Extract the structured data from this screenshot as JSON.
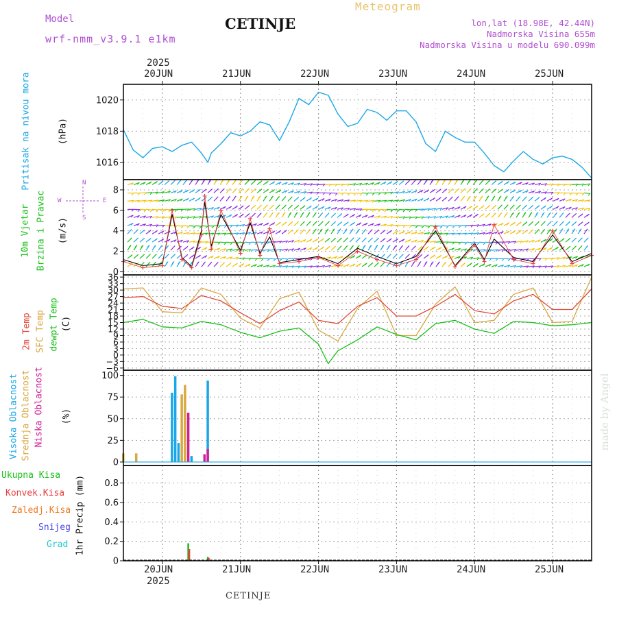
{
  "header": {
    "model_label": "Model",
    "model_name": "wrf-nmm_v3.9.1 e1km",
    "station": "CETINJE",
    "meteogram_label": "Meteogram",
    "lonlat": "lon,lat (18.98E, 42.44N)",
    "altitude": "Nadmorska Visina 655m",
    "model_altitude": "Nadmorska Visina u modelu 690.099m",
    "footer_station": "CETINJE",
    "watermark": "made by Angel"
  },
  "colors": {
    "pressure": "#1aa7e6",
    "wind_speed": "#000000",
    "wind_gust": "#e84040",
    "temp_2m": "#e24a3b",
    "temp_sfc": "#d9a840",
    "dewpoint": "#16c016",
    "cloud_high": "#1aa7e6",
    "cloud_mid": "#d9a840",
    "cloud_low": "#d0209a",
    "precip_total": "#18b818",
    "precip_conv": "#e84040",
    "precip_strat": "#f07820",
    "snow": "#4848e8",
    "hail": "#20c8c8"
  },
  "chart_data": [
    {
      "type": "line",
      "panel": "pressure",
      "ylabel_main": "Pritisak na nivou mora",
      "ylabel_unit": "(hPa)",
      "ylim": [
        1014.9,
        1021.0
      ],
      "yticks": [
        1016,
        1018,
        1020
      ],
      "x_start": "2025-06-19T12:00",
      "x_end": "2025-06-25T12:00",
      "grid": true,
      "series": [
        {
          "x": [
            "2025-06-19T12:00",
            "2025-06-19T15:00",
            "2025-06-19T18:00",
            "2025-06-19T21:00",
            "2025-06-20T00:00",
            "2025-06-20T03:00",
            "2025-06-20T06:00",
            "2025-06-20T09:00",
            "2025-06-20T12:00",
            "2025-06-20T14:00",
            "2025-06-20T15:00",
            "2025-06-20T18:00",
            "2025-06-20T21:00",
            "2025-06-21T00:00",
            "2025-06-21T03:00",
            "2025-06-21T06:00",
            "2025-06-21T09:00",
            "2025-06-21T12:00",
            "2025-06-21T15:00",
            "2025-06-21T18:00",
            "2025-06-21T21:00",
            "2025-06-22T00:00",
            "2025-06-22T03:00",
            "2025-06-22T06:00",
            "2025-06-22T09:00",
            "2025-06-22T12:00",
            "2025-06-22T15:00",
            "2025-06-22T18:00",
            "2025-06-22T21:00",
            "2025-06-23T00:00",
            "2025-06-23T03:00",
            "2025-06-23T06:00",
            "2025-06-23T09:00",
            "2025-06-23T12:00",
            "2025-06-23T15:00",
            "2025-06-23T18:00",
            "2025-06-23T21:00",
            "2025-06-24T00:00",
            "2025-06-24T03:00",
            "2025-06-24T06:00",
            "2025-06-24T09:00",
            "2025-06-24T12:00",
            "2025-06-24T15:00",
            "2025-06-24T18:00",
            "2025-06-24T21:00",
            "2025-06-25T00:00",
            "2025-06-25T03:00",
            "2025-06-25T06:00",
            "2025-06-25T09:00",
            "2025-06-25T12:00"
          ],
          "values": [
            1018.1,
            1016.8,
            1016.3,
            1016.9,
            1017.0,
            1016.7,
            1017.1,
            1017.3,
            1016.6,
            1016.0,
            1016.6,
            1017.2,
            1017.9,
            1017.7,
            1018.0,
            1018.6,
            1018.4,
            1017.4,
            1018.6,
            1020.1,
            1019.7,
            1020.5,
            1020.3,
            1019.1,
            1018.3,
            1018.5,
            1019.4,
            1019.2,
            1018.7,
            1019.3,
            1019.3,
            1018.6,
            1017.2,
            1016.7,
            1018.0,
            1017.6,
            1017.3,
            1017.3,
            1016.6,
            1015.8,
            1015.4,
            1016.1,
            1016.7,
            1016.2,
            1015.9,
            1016.3,
            1016.4,
            1016.2,
            1015.7,
            1015.0
          ]
        }
      ]
    },
    {
      "type": "line",
      "panel": "wind",
      "ylabel_main": "10m Vjetar",
      "ylabel_sub": "Brzina i Pravac",
      "ylabel_unit": "(m/s)",
      "compass": {
        "w": "W",
        "e": "E",
        "n": "N",
        "s": "S"
      },
      "ylim": [
        -0.3,
        9.0
      ],
      "yticks": [
        0,
        2,
        4,
        6,
        8
      ],
      "x_start": "2025-06-19T12:00",
      "x_end": "2025-06-25T12:00",
      "grid": true,
      "barb_rows": [
        0.5,
        1.3,
        2.1,
        2.9,
        3.7,
        4.5,
        5.3,
        6.1,
        6.9,
        7.7,
        8.5
      ],
      "series": [
        {
          "name": "speed",
          "x": [
            "2025-06-19T12:00",
            "2025-06-19T18:00",
            "2025-06-20T00:00",
            "2025-06-20T03:00",
            "2025-06-20T06:00",
            "2025-06-20T09:00",
            "2025-06-20T12:00",
            "2025-06-20T13:00",
            "2025-06-20T15:00",
            "2025-06-20T18:00",
            "2025-06-21T00:00",
            "2025-06-21T03:00",
            "2025-06-21T06:00",
            "2025-06-21T09:00",
            "2025-06-21T12:00",
            "2025-06-21T18:00",
            "2025-06-22T00:00",
            "2025-06-22T06:00",
            "2025-06-22T12:00",
            "2025-06-22T18:00",
            "2025-06-23T00:00",
            "2025-06-23T06:00",
            "2025-06-23T12:00",
            "2025-06-23T18:00",
            "2025-06-24T00:00",
            "2025-06-24T03:00",
            "2025-06-24T06:00",
            "2025-06-24T12:00",
            "2025-06-24T18:00",
            "2025-06-25T00:00",
            "2025-06-25T06:00",
            "2025-06-25T12:00"
          ],
          "values": [
            1.2,
            0.6,
            0.8,
            5.6,
            1.4,
            0.5,
            4.0,
            6.8,
            2.5,
            5.6,
            2.1,
            4.8,
            1.8,
            3.4,
            0.9,
            1.2,
            1.5,
            0.8,
            2.3,
            1.5,
            0.8,
            1.5,
            4.0,
            0.6,
            2.8,
            1.2,
            3.2,
            1.4,
            1.0,
            3.6,
            1.0,
            1.8
          ]
        },
        {
          "name": "gust",
          "x": [
            "2025-06-19T12:00",
            "2025-06-19T18:00",
            "2025-06-20T00:00",
            "2025-06-20T03:00",
            "2025-06-20T06:00",
            "2025-06-20T09:00",
            "2025-06-20T12:00",
            "2025-06-20T13:00",
            "2025-06-20T15:00",
            "2025-06-20T18:00",
            "2025-06-21T00:00",
            "2025-06-21T03:00",
            "2025-06-21T06:00",
            "2025-06-21T09:00",
            "2025-06-21T12:00",
            "2025-06-21T18:00",
            "2025-06-22T00:00",
            "2025-06-22T06:00",
            "2025-06-22T12:00",
            "2025-06-22T18:00",
            "2025-06-23T00:00",
            "2025-06-23T06:00",
            "2025-06-23T12:00",
            "2025-06-23T18:00",
            "2025-06-24T00:00",
            "2025-06-24T03:00",
            "2025-06-24T06:00",
            "2025-06-24T12:00",
            "2025-06-24T18:00",
            "2025-06-25T00:00",
            "2025-06-25T06:00",
            "2025-06-25T12:00"
          ],
          "values": [
            1.0,
            0.4,
            0.6,
            6.0,
            1.2,
            0.4,
            3.6,
            7.4,
            2.2,
            6.0,
            1.8,
            5.2,
            1.6,
            4.2,
            0.8,
            1.0,
            1.4,
            0.6,
            2.0,
            1.2,
            0.6,
            1.2,
            4.4,
            0.5,
            2.6,
            1.0,
            4.6,
            1.2,
            0.8,
            4.0,
            0.8,
            1.6
          ]
        }
      ]
    },
    {
      "type": "line",
      "panel": "temperature",
      "ylabel_lines": [
        "2m Temp",
        "SFC Temp",
        "dewpt Temp"
      ],
      "ylabel_unit": "(C)",
      "ylim": [
        -7,
        37
      ],
      "yticks": [
        -6,
        -3,
        0,
        3,
        6,
        9,
        12,
        15,
        18,
        21,
        24,
        27,
        30,
        33,
        36
      ],
      "x_start": "2025-06-19T12:00",
      "x_end": "2025-06-25T12:00",
      "grid": true,
      "series": [
        {
          "name": "2m Temp",
          "x": [
            "2025-06-19T12:00",
            "2025-06-19T18:00",
            "2025-06-20T00:00",
            "2025-06-20T06:00",
            "2025-06-20T12:00",
            "2025-06-20T18:00",
            "2025-06-21T00:00",
            "2025-06-21T06:00",
            "2025-06-21T12:00",
            "2025-06-21T18:00",
            "2025-06-22T00:00",
            "2025-06-22T06:00",
            "2025-06-22T12:00",
            "2025-06-22T18:00",
            "2025-06-23T00:00",
            "2025-06-23T06:00",
            "2025-06-23T12:00",
            "2025-06-23T18:00",
            "2025-06-24T00:00",
            "2025-06-24T06:00",
            "2025-06-24T12:00",
            "2025-06-24T18:00",
            "2025-06-25T00:00",
            "2025-06-25T06:00",
            "2025-06-25T12:00"
          ],
          "values": [
            26.5,
            27.0,
            22.5,
            21.5,
            27.5,
            25.0,
            19.5,
            14.5,
            20.5,
            24.5,
            16.0,
            14.5,
            22.5,
            26.5,
            18.0,
            18.0,
            22.5,
            28.0,
            20.5,
            19.0,
            25.0,
            28.0,
            21.0,
            21.0,
            30.5
          ]
        },
        {
          "name": "SFC Temp",
          "x": [
            "2025-06-19T12:00",
            "2025-06-19T18:00",
            "2025-06-20T00:00",
            "2025-06-20T06:00",
            "2025-06-20T12:00",
            "2025-06-20T18:00",
            "2025-06-21T00:00",
            "2025-06-21T06:00",
            "2025-06-21T12:00",
            "2025-06-21T18:00",
            "2025-06-22T00:00",
            "2025-06-22T06:00",
            "2025-06-22T12:00",
            "2025-06-22T18:00",
            "2025-06-23T00:00",
            "2025-06-23T06:00",
            "2025-06-23T12:00",
            "2025-06-23T18:00",
            "2025-06-24T00:00",
            "2025-06-24T06:00",
            "2025-06-24T12:00",
            "2025-06-24T18:00",
            "2025-06-25T00:00",
            "2025-06-25T06:00",
            "2025-06-25T12:00"
          ],
          "values": [
            30.5,
            31.0,
            20.0,
            19.5,
            31.0,
            28.0,
            17.0,
            12.5,
            26.0,
            29.0,
            11.5,
            6.5,
            21.5,
            29.5,
            9.0,
            9.0,
            23.5,
            31.5,
            15.0,
            16.0,
            28.0,
            31.0,
            15.0,
            15.5,
            36.0
          ]
        },
        {
          "name": "dewpt Temp",
          "x": [
            "2025-06-19T12:00",
            "2025-06-19T18:00",
            "2025-06-20T00:00",
            "2025-06-20T06:00",
            "2025-06-20T12:00",
            "2025-06-20T18:00",
            "2025-06-21T00:00",
            "2025-06-21T06:00",
            "2025-06-21T12:00",
            "2025-06-21T18:00",
            "2025-06-22T00:00",
            "2025-06-22T03:00",
            "2025-06-22T06:00",
            "2025-06-22T12:00",
            "2025-06-22T18:00",
            "2025-06-23T00:00",
            "2025-06-23T06:00",
            "2025-06-23T12:00",
            "2025-06-23T18:00",
            "2025-06-24T00:00",
            "2025-06-24T06:00",
            "2025-06-24T12:00",
            "2025-06-24T18:00",
            "2025-06-25T00:00",
            "2025-06-25T06:00",
            "2025-06-25T12:00"
          ],
          "values": [
            15.0,
            16.5,
            13.0,
            12.5,
            15.5,
            14.0,
            10.5,
            8.0,
            11.0,
            12.5,
            5.0,
            -4.0,
            2.0,
            7.0,
            13.0,
            9.5,
            7.0,
            14.5,
            16.0,
            12.0,
            10.0,
            15.5,
            15.0,
            13.5,
            14.0,
            15.0
          ]
        }
      ]
    },
    {
      "type": "bar",
      "panel": "clouds",
      "ylabel_lines": [
        "Visoka Oblacnost",
        "Srednja Oblacnost",
        "Niska Oblacnost"
      ],
      "ylabel_unit": "(%)",
      "ylim": [
        -4,
        106
      ],
      "yticks": [
        0,
        25,
        50,
        75,
        100
      ],
      "x_start": "2025-06-19T12:00",
      "x_end": "2025-06-25T12:00",
      "grid": true,
      "series": [
        {
          "name": "Visoka Oblacnost",
          "x": [
            "2025-06-20T03:00",
            "2025-06-20T04:00",
            "2025-06-20T05:00",
            "2025-06-20T09:00",
            "2025-06-20T14:00"
          ],
          "values": [
            80,
            99,
            22,
            7,
            94
          ]
        },
        {
          "name": "Srednja Oblacnost",
          "x": [
            "2025-06-19T12:00",
            "2025-06-19T16:00",
            "2025-06-20T06:00",
            "2025-06-20T07:00"
          ],
          "values": [
            10,
            10,
            78,
            89
          ]
        },
        {
          "name": "Niska Oblacnost",
          "x": [
            "2025-06-20T08:00",
            "2025-06-20T13:00",
            "2025-06-20T14:00"
          ],
          "values": [
            57,
            9,
            15
          ]
        }
      ]
    },
    {
      "type": "bar",
      "panel": "precip",
      "ylabel_lines": [
        "Ukupna Kisa",
        "Konvek.Kisa",
        "Zaledj.Kisa",
        "Snijeg",
        "Grad"
      ],
      "ylabel_main": "1hr Precip (mm)",
      "ylim": [
        0,
        0.98
      ],
      "yticks": [
        0,
        0.2,
        0.4,
        0.6,
        0.8
      ],
      "x_start": "2025-06-19T12:00",
      "x_end": "2025-06-25T12:00",
      "grid": true,
      "series": [
        {
          "name": "Ukupna Kisa",
          "x": [
            "2025-06-20T08:00",
            "2025-06-20T14:00"
          ],
          "values": [
            0.18,
            0.04
          ]
        },
        {
          "name": "Konvek.Kisa",
          "x": [
            "2025-06-20T08:00",
            "2025-06-20T14:00"
          ],
          "values": [
            0.12,
            0.03
          ]
        }
      ]
    }
  ],
  "x_axis": {
    "top_year": "2025",
    "bottom_year": "2025",
    "day_labels": [
      {
        "t": "2025-06-20T00:00",
        "label": "20JUN"
      },
      {
        "t": "2025-06-21T00:00",
        "label": "21JUN"
      },
      {
        "t": "2025-06-22T00:00",
        "label": "22JUN"
      },
      {
        "t": "2025-06-23T00:00",
        "label": "23JUN"
      },
      {
        "t": "2025-06-24T00:00",
        "label": "24JUN"
      },
      {
        "t": "2025-06-25T00:00",
        "label": "25JUN"
      }
    ]
  }
}
